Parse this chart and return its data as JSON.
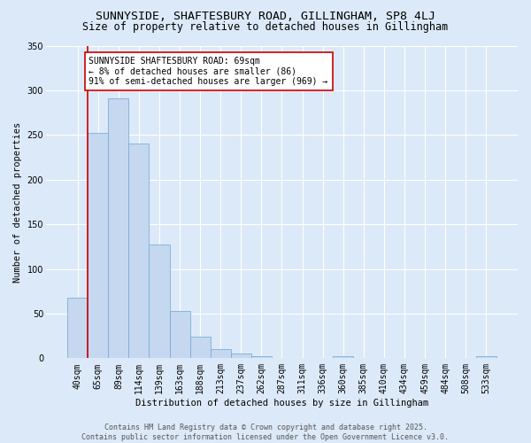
{
  "title": "SUNNYSIDE, SHAFTESBURY ROAD, GILLINGHAM, SP8 4LJ",
  "subtitle": "Size of property relative to detached houses in Gillingham",
  "xlabel": "Distribution of detached houses by size in Gillingham",
  "ylabel": "Number of detached properties",
  "bar_labels": [
    "40sqm",
    "65sqm",
    "89sqm",
    "114sqm",
    "139sqm",
    "163sqm",
    "188sqm",
    "213sqm",
    "237sqm",
    "262sqm",
    "287sqm",
    "311sqm",
    "336sqm",
    "360sqm",
    "385sqm",
    "410sqm",
    "434sqm",
    "459sqm",
    "484sqm",
    "508sqm",
    "533sqm"
  ],
  "bar_values": [
    68,
    252,
    291,
    240,
    127,
    53,
    24,
    10,
    5,
    2,
    0,
    0,
    0,
    2,
    0,
    0,
    0,
    0,
    0,
    0,
    2
  ],
  "bar_color": "#c5d8f0",
  "bar_edge_color": "#7aafd4",
  "highlight_line_color": "#cc0000",
  "annotation_text": "SUNNYSIDE SHAFTESBURY ROAD: 69sqm\n← 8% of detached houses are smaller (86)\n91% of semi-detached houses are larger (969) →",
  "annotation_box_color": "#ffffff",
  "annotation_box_edge": "#cc0000",
  "ylim": [
    0,
    350
  ],
  "yticks": [
    0,
    50,
    100,
    150,
    200,
    250,
    300,
    350
  ],
  "background_color": "#dce9f8",
  "plot_bg_color": "#dce9f8",
  "footer_text": "Contains HM Land Registry data © Crown copyright and database right 2025.\nContains public sector information licensed under the Open Government Licence v3.0.",
  "title_fontsize": 9.5,
  "subtitle_fontsize": 8.5,
  "axis_label_fontsize": 7.5,
  "tick_fontsize": 7,
  "annotation_fontsize": 7,
  "footer_fontsize": 6
}
